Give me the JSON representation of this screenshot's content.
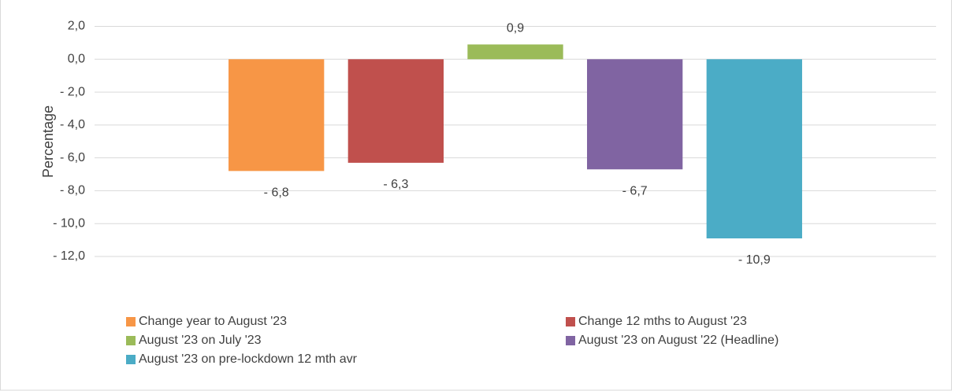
{
  "chart_data": {
    "type": "bar",
    "y_label": "Percentage",
    "categories": [
      null
    ],
    "series": [
      {
        "name": "Change year to August '23",
        "color": "#F79646",
        "values": [
          -6.8
        ],
        "value_labels": [
          "- 6,8"
        ]
      },
      {
        "name": "Change 12 mths to August '23",
        "color": "#C0504D",
        "values": [
          -6.3
        ],
        "value_labels": [
          "- 6,3"
        ]
      },
      {
        "name": "August '23 on July '23",
        "color": "#9BBB59",
        "values": [
          0.9
        ],
        "value_labels": [
          "0,9"
        ]
      },
      {
        "name": "August '23 on August '22 (Headline)",
        "color": "#8064A2",
        "values": [
          -6.7
        ],
        "value_labels": [
          "- 6,7"
        ]
      },
      {
        "name": "August '23 on pre-lockdown 12 mth avr",
        "color": "#4BACC6",
        "values": [
          -10.9
        ],
        "value_labels": [
          "- 10,9"
        ]
      }
    ],
    "ylim": [
      -12,
      2
    ],
    "yticks": [
      {
        "value": 2,
        "label": "2,0"
      },
      {
        "value": 0,
        "label": "0,0"
      },
      {
        "value": -2,
        "label": "- 2,0"
      },
      {
        "value": -4,
        "label": "- 4,0"
      },
      {
        "value": -6,
        "label": "- 6,0"
      },
      {
        "value": -8,
        "label": "- 8,0"
      },
      {
        "value": -10,
        "label": "- 10,0"
      },
      {
        "value": -12,
        "label": "- 12,0"
      }
    ],
    "grid": true,
    "legend": "bottom"
  }
}
